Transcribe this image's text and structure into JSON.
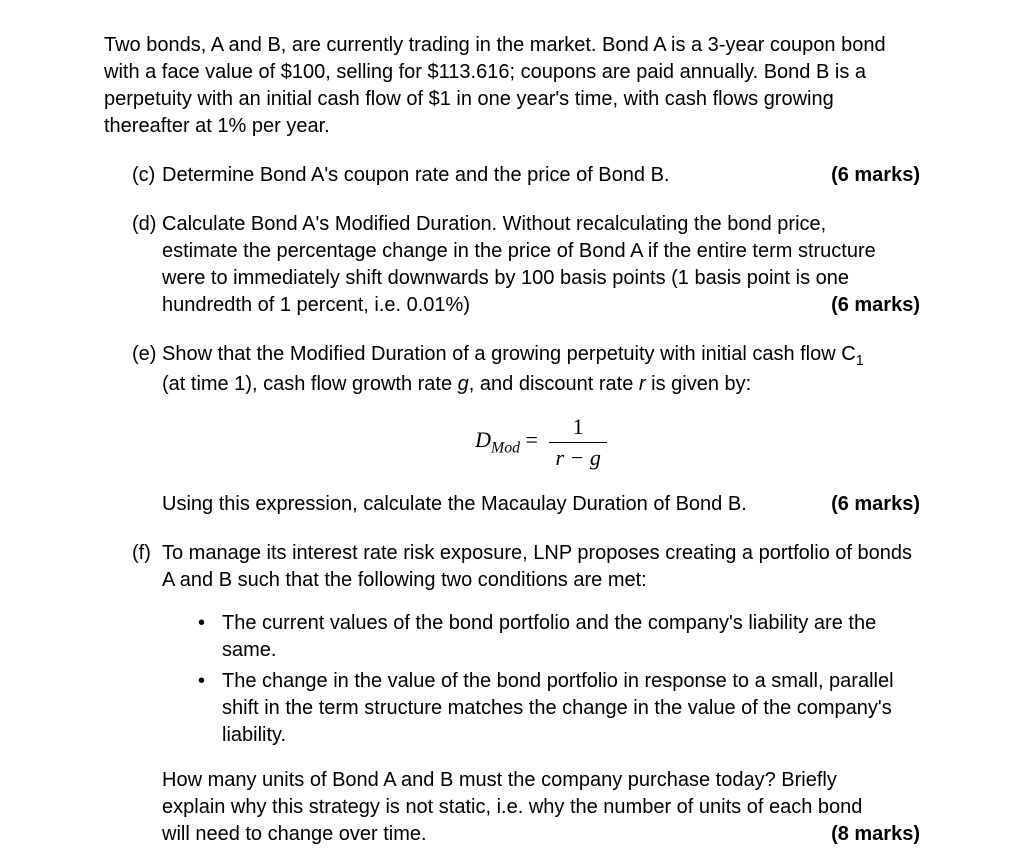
{
  "intro": "Two bonds, A and B, are currently trading in the market. Bond A is a 3-year coupon bond with a face value of $100, selling for $113.616; coupons are paid annually. Bond B is a perpetuity with an initial cash flow of $1 in one year's time, with cash flows growing thereafter at 1% per year.",
  "questions": {
    "c": {
      "label": "(c)",
      "text": "Determine Bond A's coupon rate and the price of Bond B.",
      "marks": "(6 marks)"
    },
    "d": {
      "label": "(d)",
      "line1": "Calculate Bond A's Modified Duration. Without recalculating the bond price,",
      "line2": "estimate the percentage change in the price of Bond A if the entire term structure",
      "line3": "were to immediately shift downwards by 100 basis points (1 basis point is one",
      "line4": "hundredth of 1 percent, i.e. 0.01%)",
      "marks": "(6 marks)"
    },
    "e": {
      "label": "(e)",
      "line1_a": "Show that the Modified Duration of a growing perpetuity with initial cash flow C",
      "line1_sub": "1",
      "line2_a": "(at time 1), cash flow growth rate ",
      "line2_g": "g",
      "line2_b": ", and discount rate ",
      "line2_r": "r",
      "line2_c": " is given by:",
      "formula": {
        "lhs_D": "D",
        "lhs_sub": "Mod",
        "eq": " = ",
        "num": "1",
        "den": "r − g"
      },
      "follow": "Using this expression, calculate the Macaulay Duration of Bond B.",
      "marks": "(6 marks)"
    },
    "f": {
      "label": "(f)",
      "lead": "To manage its interest rate risk exposure, LNP proposes creating a portfolio of bonds A and B such that the following two conditions are met:",
      "bullets": [
        "The current values of the bond portfolio and the company's liability are the same.",
        "The change in the value of the bond portfolio in response to a small, parallel shift in the term structure matches the change in the value of the company's liability."
      ],
      "close_l1": "How many units of Bond A and B must the company purchase today? Briefly",
      "close_l2": "explain why this strategy is not static, i.e. why the number of units of each bond",
      "close_l3": "will need to change over time.",
      "marks": "(8 marks)"
    }
  }
}
